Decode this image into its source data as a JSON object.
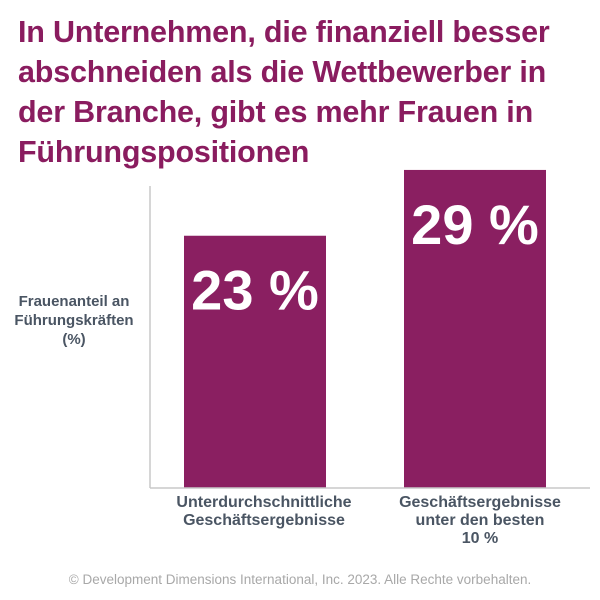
{
  "title": "In Unternehmen, die finanziell besser abschneiden als die Wettbewerber in der Branche, gibt es mehr Frauen in Führungspositionen",
  "footer": "© Development Dimensions International, Inc. 2023. Alle Rechte vorbehalten.",
  "colors": {
    "bar": "#8a1f61",
    "title": "#8a1c5f",
    "axis_text": "#4a5563",
    "axis_line": "#c8c8c8"
  },
  "chart_data": {
    "type": "bar",
    "title": "In Unternehmen, die finanziell besser abschneiden als die Wettbewerber in der Branche, gibt es mehr Frauen in Führungspositionen",
    "ylabel_lines": [
      "Frauenanteil an",
      "Führungskräften",
      "(%)"
    ],
    "categories": [
      [
        "Unterdurchschnittliche",
        "Geschäftsergebnisse"
      ],
      [
        "Geschäftsergebnisse",
        "unter den besten",
        "10 %"
      ]
    ],
    "values": [
      23,
      29
    ],
    "value_labels": [
      "23 %",
      "29 %"
    ],
    "ylim": [
      0,
      31
    ],
    "grid": false
  }
}
